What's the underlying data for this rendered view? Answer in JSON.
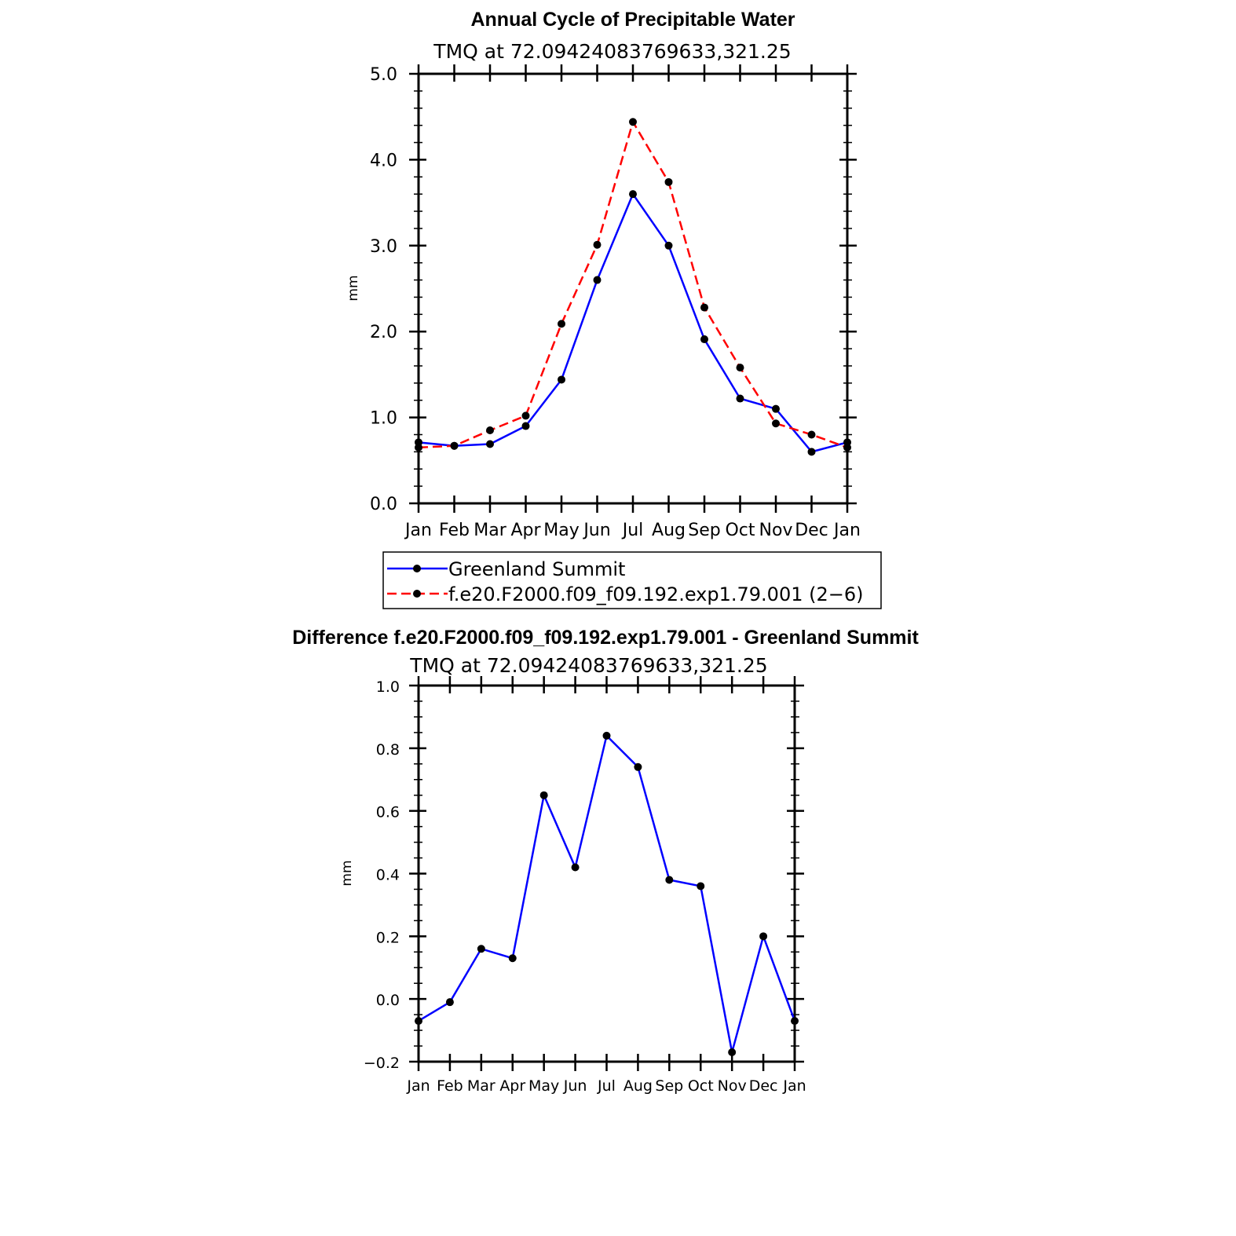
{
  "chart_data": [
    {
      "type": "line",
      "title": "Annual Cycle of Precipitable Water",
      "subtitle": "TMQ at 72.09424083769633,321.25",
      "ylabel": "mm",
      "xlabel": "",
      "categories": [
        "Jan",
        "Feb",
        "Mar",
        "Apr",
        "May",
        "Jun",
        "Jul",
        "Aug",
        "Sep",
        "Oct",
        "Nov",
        "Dec",
        "Jan"
      ],
      "ylim": [
        0,
        5
      ],
      "yticks": [
        "0.0",
        "1.0",
        "2.0",
        "3.0",
        "4.0",
        "5.0"
      ],
      "series": [
        {
          "name": "Greenland Summit",
          "color": "#0000ff",
          "dash": "solid",
          "values": [
            0.71,
            0.67,
            0.69,
            0.9,
            1.44,
            2.6,
            3.6,
            3.0,
            1.91,
            1.22,
            1.1,
            0.6,
            0.71
          ]
        },
        {
          "name": "f.e20.F2000.f09_f09.192.exp1.79.001 (2−6)",
          "color": "#ff0000",
          "dash": "dashed",
          "values": [
            0.65,
            0.67,
            0.85,
            1.02,
            2.09,
            3.01,
            4.44,
            3.74,
            2.28,
            1.58,
            0.93,
            0.8,
            0.65
          ]
        }
      ],
      "legend": [
        "Greenland Summit",
        "f.e20.F2000.f09_f09.192.exp1.79.001 (2−6)"
      ]
    },
    {
      "type": "line",
      "title": "Difference f.e20.F2000.f09_f09.192.exp1.79.001 - Greenland Summit",
      "subtitle": "TMQ at 72.09424083769633,321.25",
      "ylabel": "mm",
      "xlabel": "",
      "categories": [
        "Jan",
        "Feb",
        "Mar",
        "Apr",
        "May",
        "Jun",
        "Jul",
        "Aug",
        "Sep",
        "Oct",
        "Nov",
        "Dec",
        "Jan"
      ],
      "ylim": [
        -0.2,
        1.0
      ],
      "yticks": [
        "−0.2",
        "0.0",
        "0.2",
        "0.4",
        "0.6",
        "0.8",
        "1.0"
      ],
      "series": [
        {
          "name": "Difference",
          "color": "#0000ff",
          "dash": "solid",
          "values": [
            -0.07,
            -0.01,
            0.16,
            0.13,
            0.65,
            0.42,
            0.84,
            0.74,
            0.38,
            0.36,
            -0.17,
            0.2,
            -0.07
          ]
        }
      ]
    }
  ]
}
